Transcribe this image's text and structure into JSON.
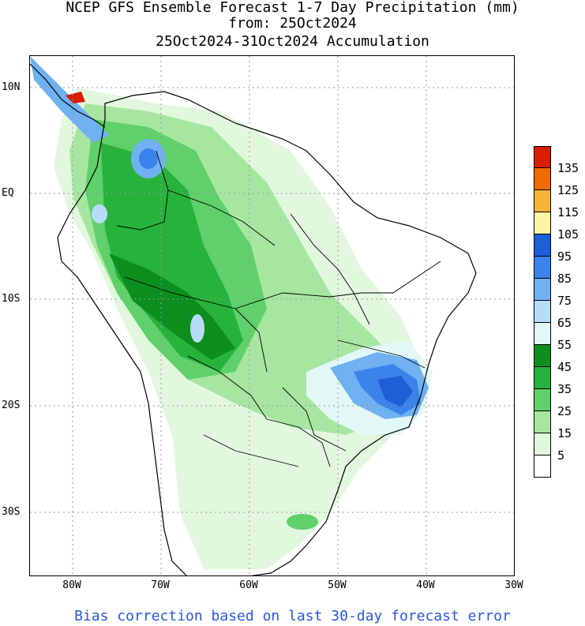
{
  "title": {
    "line1": "NCEP GFS Ensemble Forecast 1-7 Day Precipitation (mm)",
    "line2": "from: 25Oct2024",
    "line3": "25Oct2024-31Oct2024 Accumulation"
  },
  "axes": {
    "lat_labels": [
      "10N",
      "EQ",
      "10S",
      "20S",
      "30S"
    ],
    "lon_labels": [
      "80W",
      "70W",
      "60W",
      "50W",
      "40W",
      "30W"
    ]
  },
  "legend": {
    "labels": [
      "135",
      "125",
      "115",
      "105",
      "95",
      "85",
      "75",
      "65",
      "55",
      "45",
      "35",
      "25",
      "15",
      "5"
    ],
    "colors": [
      "#d81e05",
      "#f26b00",
      "#f8b437",
      "#fcf5a5",
      "#1e5fd8",
      "#3b82ea",
      "#6fb1f1",
      "#b7dcf9",
      "#e3f8f6",
      "#0c8f1f",
      "#27b23b",
      "#5fd06a",
      "#a7e6a1",
      "#e2f8de",
      "#ffffff"
    ]
  },
  "footer": "Bias correction based on last 30-day forecast error",
  "colors": {
    "footer_text": "#2a55e6",
    "grid": "#9a9a9a"
  }
}
